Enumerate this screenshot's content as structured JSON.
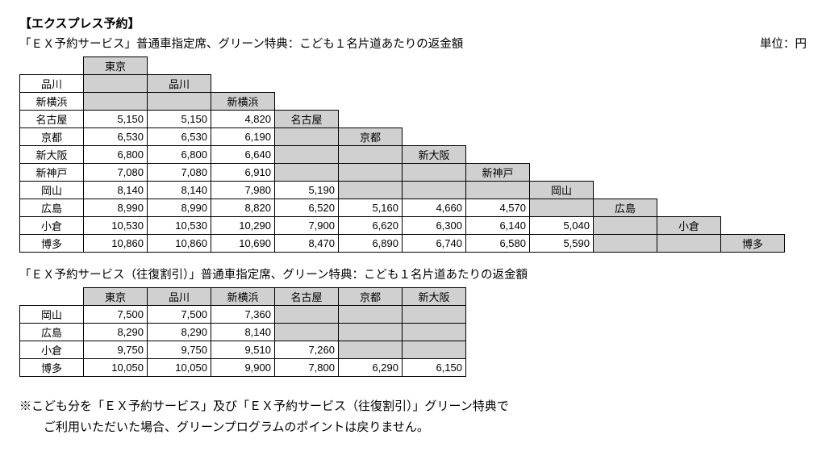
{
  "heading": "【エクスプレス予約】",
  "subtitle1": "「ＥＸ予約サービス」普通車指定席、グリーン特典：こども１名片道あたりの返金額",
  "unit": "単位：円",
  "table1": {
    "diag": [
      "東京",
      "品川",
      "新横浜",
      "名古屋",
      "京都",
      "新大阪",
      "新神戸",
      "岡山",
      "広島",
      "小倉",
      "博多"
    ],
    "rows": [
      {
        "label": "品川",
        "v": []
      },
      {
        "label": "新横浜",
        "v": []
      },
      {
        "label": "名古屋",
        "v": [
          "5,150",
          "5,150",
          "4,820"
        ]
      },
      {
        "label": "京都",
        "v": [
          "6,530",
          "6,530",
          "6,190"
        ]
      },
      {
        "label": "新大阪",
        "v": [
          "6,800",
          "6,800",
          "6,640"
        ]
      },
      {
        "label": "新神戸",
        "v": [
          "7,080",
          "7,080",
          "6,910"
        ]
      },
      {
        "label": "岡山",
        "v": [
          "8,140",
          "8,140",
          "7,980",
          "5,190"
        ]
      },
      {
        "label": "広島",
        "v": [
          "8,990",
          "8,990",
          "8,820",
          "6,520",
          "5,160",
          "4,660",
          "4,570"
        ]
      },
      {
        "label": "小倉",
        "v": [
          "10,530",
          "10,530",
          "10,290",
          "7,900",
          "6,620",
          "6,300",
          "6,140",
          "5,040"
        ]
      },
      {
        "label": "博多",
        "v": [
          "10,860",
          "10,860",
          "10,690",
          "8,470",
          "6,890",
          "6,740",
          "6,580",
          "5,590"
        ]
      }
    ]
  },
  "subtitle2": "「ＥＸ予約サービス（往復割引）」普通車指定席、グリーン特典：こども１名片道あたりの返金額",
  "table2": {
    "cols": [
      "東京",
      "品川",
      "新横浜",
      "名古屋",
      "京都",
      "新大阪"
    ],
    "rows": [
      {
        "label": "岡山",
        "v": [
          "7,500",
          "7,500",
          "7,360"
        ]
      },
      {
        "label": "広島",
        "v": [
          "8,290",
          "8,290",
          "8,140"
        ]
      },
      {
        "label": "小倉",
        "v": [
          "9,750",
          "9,750",
          "9,510",
          "7,260"
        ]
      },
      {
        "label": "博多",
        "v": [
          "10,050",
          "10,050",
          "9,900",
          "7,800",
          "6,290",
          "6,150"
        ]
      }
    ]
  },
  "footnote_l1": "※こども分を「ＥＸ予約サービス」及び「ＥＸ予約サービス（往復割引）」グリーン特典で",
  "footnote_l2": "　　ご利用いただいた場合、グリーンプログラムのポイントは戻りません。"
}
